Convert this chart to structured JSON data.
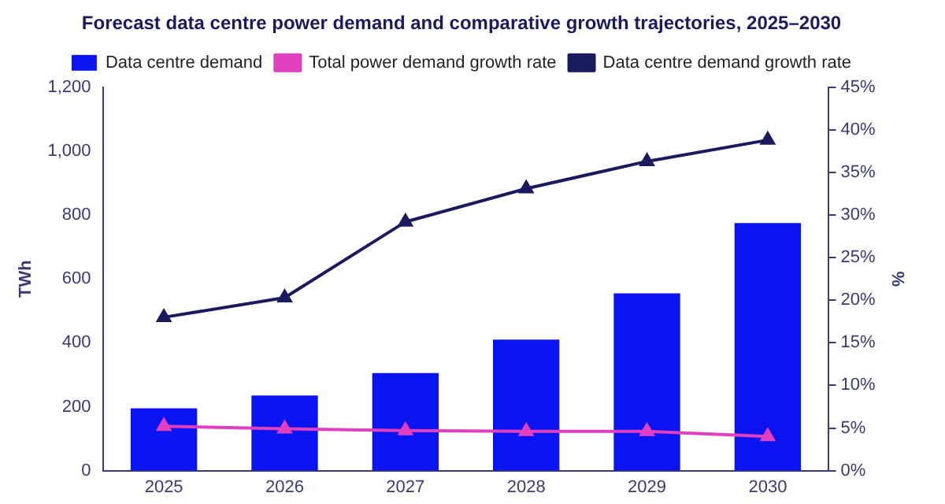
{
  "chart_data": {
    "type": "bar",
    "title": "Forecast data centre power demand and comparative growth trajectories, 2025–2030",
    "categories": [
      "2025",
      "2026",
      "2027",
      "2028",
      "2029",
      "2030"
    ],
    "series": [
      {
        "name": "Data centre demand",
        "color": "#0a14f0",
        "values": [
          195,
          235,
          305,
          410,
          555,
          775
        ]
      },
      {
        "name": "Total power demand growth rate",
        "type": "line",
        "axis": "y2",
        "color": "#e040c0",
        "marker": "triangle",
        "values": [
          5.2,
          4.9,
          4.7,
          4.6,
          4.6,
          4.0
        ]
      },
      {
        "name": "Data centre demand growth rate",
        "type": "line",
        "axis": "y2",
        "color": "#1a1a5e",
        "marker": "triangle",
        "values": [
          18.0,
          20.3,
          29.2,
          33.1,
          36.3,
          38.8
        ]
      }
    ],
    "ylabel": "TWh",
    "y2label": "%",
    "ylim": [
      0,
      1200
    ],
    "yticks": [
      0,
      200,
      400,
      600,
      800,
      {
        "value": 1000,
        "label": "1,000"
      },
      {
        "value": 1200,
        "label": "1,200"
      }
    ],
    "y2lim": [
      0,
      45
    ],
    "y2ticks": [
      {
        "value": 0,
        "label": "0%"
      },
      {
        "value": 5,
        "label": "5%"
      },
      {
        "value": 10,
        "label": "10%"
      },
      {
        "value": 15,
        "label": "15%"
      },
      {
        "value": 20,
        "label": "20%"
      },
      {
        "value": 25,
        "label": "25%"
      },
      {
        "value": 30,
        "label": "30%"
      },
      {
        "value": 35,
        "label": "35%"
      },
      {
        "value": 40,
        "label": "40%"
      },
      {
        "value": 45,
        "label": "45%"
      }
    ],
    "grid": false,
    "legend": "top"
  }
}
